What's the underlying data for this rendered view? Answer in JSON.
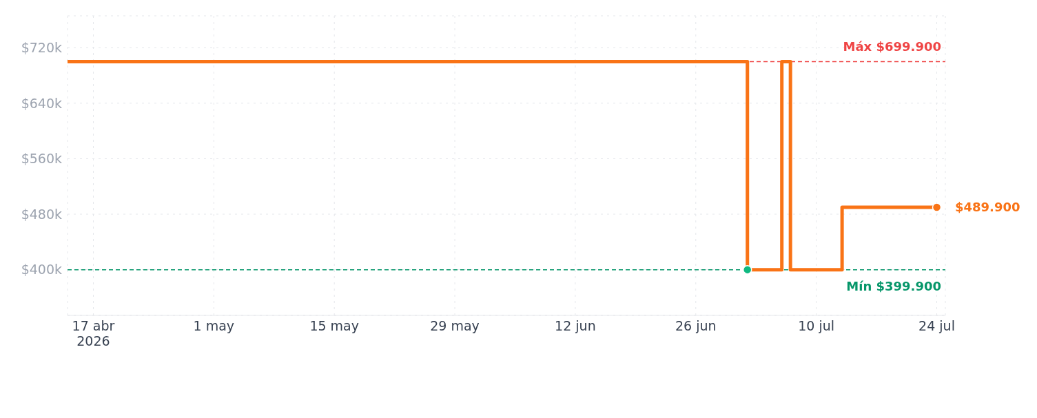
{
  "chart_data": {
    "type": "step",
    "xlim": [
      "2026-04-14",
      "2026-07-25"
    ],
    "ylim": [
      334000,
      766000
    ],
    "xticks": [
      {
        "value": "2026-04-17",
        "label": "17 abr\n2026"
      },
      {
        "value": "2026-05-01",
        "label": "1 may"
      },
      {
        "value": "2026-05-15",
        "label": "15 may"
      },
      {
        "value": "2026-05-29",
        "label": "29 may"
      },
      {
        "value": "2026-06-12",
        "label": "12 jun"
      },
      {
        "value": "2026-06-26",
        "label": "26 jun"
      },
      {
        "value": "2026-07-10",
        "label": "10 jul"
      },
      {
        "value": "2026-07-24",
        "label": "24 jul"
      }
    ],
    "yticks": [
      {
        "value": 400000,
        "label": "$400k"
      },
      {
        "value": 480000,
        "label": "$480k"
      },
      {
        "value": 560000,
        "label": "$560k"
      },
      {
        "value": 640000,
        "label": "$640k"
      },
      {
        "value": 720000,
        "label": "$720k"
      }
    ],
    "grid": true,
    "legend": false,
    "marker": "none",
    "line_style": "solid",
    "series": [
      {
        "color": "#f97316",
        "x": [
          "2026-04-14",
          "2026-07-02",
          "2026-07-06",
          "2026-07-07",
          "2026-07-13",
          "2026-07-24"
        ],
        "values": [
          699900,
          399900,
          699900,
          399900,
          489900,
          489900
        ]
      },
      {
        "type": "scatter",
        "color": "#10b981",
        "marker": "circle",
        "x": [
          "2026-07-02"
        ],
        "values": [
          399900
        ]
      },
      {
        "type": "scatter",
        "color": "#f97316",
        "marker": "circle",
        "x": [
          "2026-07-24"
        ],
        "values": [
          489900
        ],
        "value_labels": [
          "$489.900"
        ]
      }
    ],
    "ref_lines": [
      {
        "axis": "y",
        "value": 699900,
        "label": "Máx $699.900",
        "color": "#ef4444",
        "line_style": "dashed"
      },
      {
        "axis": "y",
        "value": 399900,
        "label": "Mín $399.900",
        "color": "#059669",
        "line_style": "dashed"
      }
    ]
  }
}
